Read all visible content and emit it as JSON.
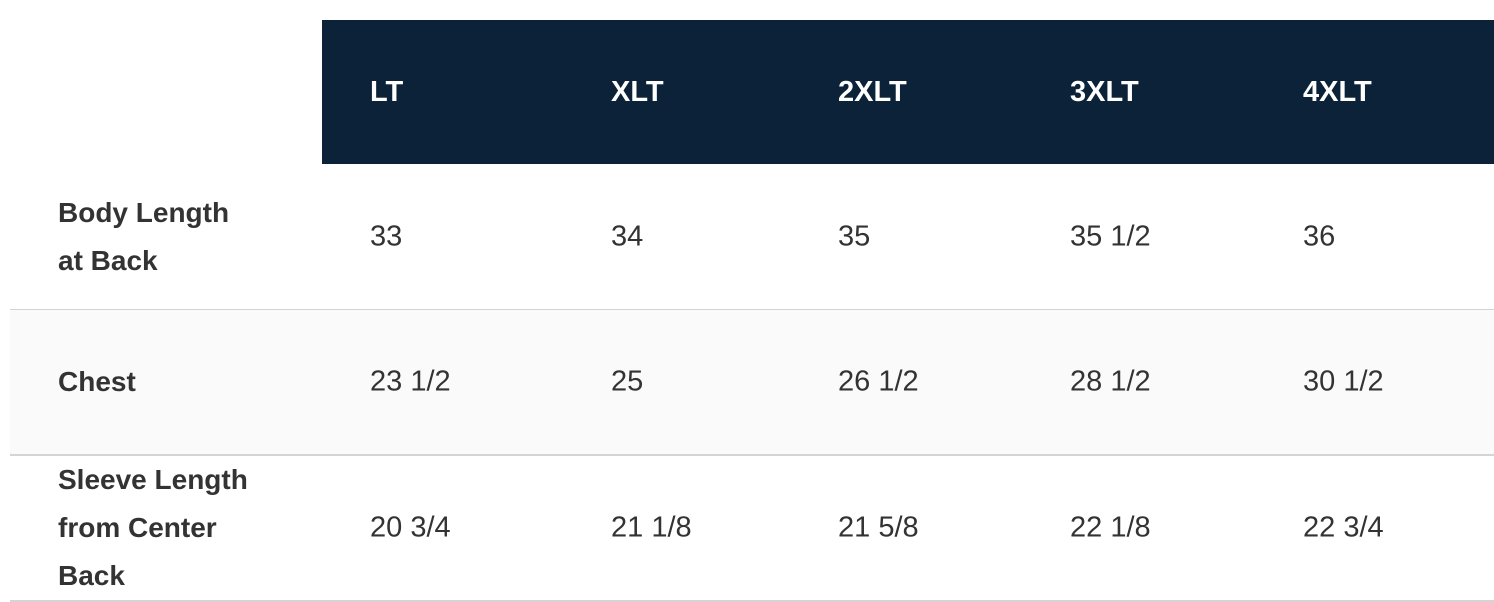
{
  "table": {
    "header": [
      "LT",
      "XLT",
      "2XLT",
      "3XLT",
      "4XLT"
    ],
    "rows": [
      [
        "Body Length at Back",
        "33",
        "34",
        "35",
        "35 1/2",
        "36"
      ],
      [
        "Chest",
        "23 1/2",
        "25",
        "26 1/2",
        "28 1/2",
        "30 1/2"
      ],
      [
        "Sleeve Length from Center Back",
        "20 3/4",
        "21 1/8",
        "21 5/8",
        "22 1/8",
        "22 3/4"
      ]
    ]
  }
}
